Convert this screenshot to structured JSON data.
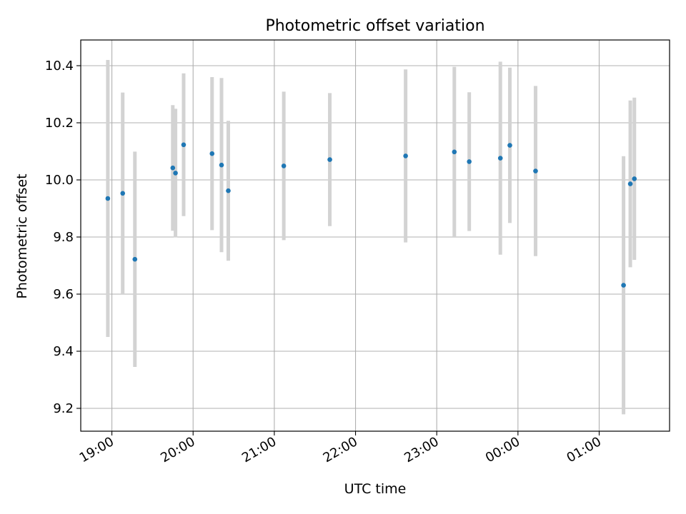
{
  "chart_data": {
    "type": "scatter",
    "title": "Photometric offset variation",
    "xlabel": "UTC time",
    "ylabel": "Photometric offset",
    "xlim": [
      "18:37",
      "01:52"
    ],
    "ylim": [
      9.12,
      10.49
    ],
    "grid": true,
    "legend": "none",
    "x_tick_labels": [
      "19:00",
      "20:00",
      "21:00",
      "22:00",
      "23:00",
      "00:00",
      "01:00"
    ],
    "y_ticks": [
      9.2,
      9.4,
      9.6,
      9.8,
      10.0,
      10.2,
      10.4
    ],
    "y_tick_labels": [
      "9.2",
      "9.4",
      "9.6",
      "9.8",
      "10.0",
      "10.2",
      "10.4"
    ],
    "colors": {
      "point": "#1f77b4",
      "errorbar": "#d3d3d3",
      "grid": "#b0b0b0"
    },
    "series": [
      {
        "x": [
          "18:57",
          "19:08",
          "19:17",
          "19:45",
          "19:47",
          "19:53",
          "20:14",
          "20:21",
          "20:26",
          "21:07",
          "21:41",
          "22:37",
          "23:13",
          "23:24",
          "23:47",
          "23:54",
          "00:13",
          "01:18",
          "01:23",
          "01:26"
        ],
        "y": [
          9.935,
          9.953,
          9.722,
          10.042,
          10.024,
          10.123,
          10.092,
          10.052,
          9.962,
          10.049,
          10.071,
          10.084,
          10.098,
          10.064,
          10.076,
          10.121,
          10.031,
          9.631,
          9.986,
          10.004
        ],
        "yerr": [
          0.485,
          0.353,
          0.377,
          0.22,
          0.225,
          0.25,
          0.268,
          0.305,
          0.245,
          0.26,
          0.233,
          0.303,
          0.298,
          0.243,
          0.338,
          0.272,
          0.298,
          0.452,
          0.292,
          0.284
        ]
      }
    ]
  }
}
